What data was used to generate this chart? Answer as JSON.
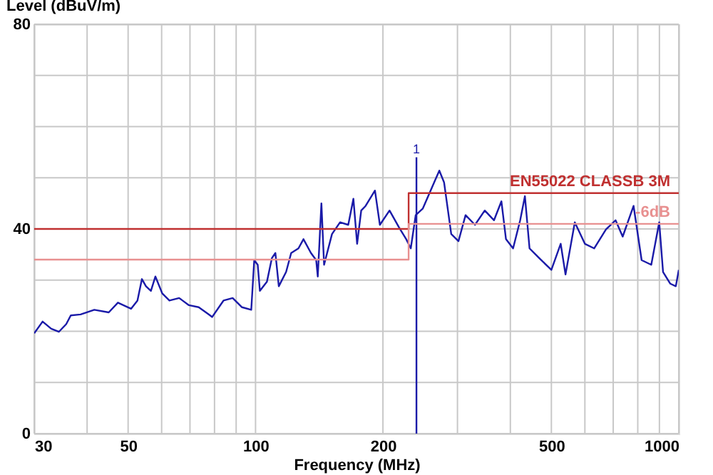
{
  "chart_data": {
    "type": "line",
    "xlabel": "Frequency (MHz)",
    "ylabel": "Level (dBuV/m)",
    "log": "x",
    "xlim": [
      30,
      1000
    ],
    "ylim": [
      0,
      80
    ],
    "xticks": [
      30,
      {
        "value": 40,
        "label": null
      },
      50,
      {
        "value": 60,
        "label": null
      },
      {
        "value": 70,
        "label": null
      },
      {
        "value": 80,
        "label": null
      },
      {
        "value": 90,
        "label": null
      },
      100,
      200,
      {
        "value": 300,
        "label": null
      },
      {
        "value": 400,
        "label": null
      },
      500,
      {
        "value": 600,
        "label": null
      },
      {
        "value": 700,
        "label": null
      },
      {
        "value": 800,
        "label": null
      },
      {
        "value": 900,
        "label": null
      },
      1000
    ],
    "yticks": [
      0,
      {
        "value": 10,
        "label": null
      },
      {
        "value": 20,
        "label": null
      },
      {
        "value": 30,
        "label": null
      },
      40,
      {
        "value": 50,
        "label": null
      },
      {
        "value": 60,
        "label": null
      },
      {
        "value": 70,
        "label": null
      },
      80
    ],
    "grid": true,
    "annotations": [
      {
        "text": "1",
        "x": 240,
        "y": 54
      }
    ],
    "series": [
      {
        "color": "#1a1aa8",
        "x": [
          30,
          31.4,
          32.9,
          34.3,
          35.7,
          36.6,
          38.6,
          41.6,
          45,
          47.3,
          50.8,
          52.6,
          53.9,
          55.1,
          56.6,
          58,
          60.2,
          62.6,
          66,
          69.6,
          73.4,
          77.5,
          79,
          84,
          88.3,
          92.9,
          97.7,
          99.3,
          101.2,
          102.4,
          106.4,
          109.3,
          111.4,
          113.5,
          118.1,
          121.4,
          126.3,
          129.8,
          135.2,
          139.1,
          140.3,
          143.1,
          145.2,
          151.6,
          158.4,
          165.6,
          170.3,
          173.8,
          177.7,
          182,
          191.5,
          196.7,
          207.3,
          218.3,
          227,
          232.7,
          239,
          248.5,
          261.4,
          271.8,
          278.9,
          290,
          301.6,
          313.5,
          330,
          348,
          366,
          381,
          390.6,
          406,
          422,
          433,
          444,
          468,
          500,
          526,
          540,
          568,
          600,
          631,
          673,
          709,
          737,
          782,
          817,
          861,
          899,
          918,
          955,
          984,
          1000
        ],
        "values": [
          19.6,
          21.9,
          20.5,
          19.9,
          21.4,
          23.1,
          23.3,
          24.2,
          23.7,
          25.6,
          24.4,
          26.0,
          30.2,
          28.8,
          27.9,
          30.7,
          27.4,
          26.0,
          26.5,
          25.1,
          24.7,
          23.3,
          22.8,
          26.0,
          26.5,
          24.7,
          24.2,
          33.9,
          33.0,
          27.9,
          29.7,
          34.3,
          35.3,
          28.8,
          31.6,
          35.3,
          36.2,
          38.0,
          35.3,
          33.9,
          30.7,
          45.0,
          33.0,
          39.0,
          41.3,
          40.8,
          45.9,
          37.1,
          43.6,
          44.5,
          47.5,
          40.8,
          43.6,
          40.3,
          38.0,
          36.2,
          42.7,
          44.0,
          48.2,
          51.4,
          49.1,
          39.0,
          37.6,
          42.7,
          40.8,
          43.6,
          41.7,
          45.4,
          38.0,
          36.2,
          41.7,
          46.4,
          36.2,
          34.3,
          32.0,
          37.1,
          31.1,
          41.3,
          37.1,
          36.2,
          39.9,
          41.7,
          38.5,
          44.5,
          33.9,
          33.0,
          41.3,
          31.6,
          29.3,
          28.8,
          32.0
        ]
      },
      {
        "type": "line",
        "color": "#1a1aa8",
        "x": [
          240,
          240
        ],
        "values": [
          0,
          54
        ]
      },
      {
        "type": "step",
        "name": "EN55022 CLASSB 3M",
        "color": "#c03030",
        "x": [
          30,
          230,
          1000
        ],
        "values": [
          40,
          47,
          47
        ]
      },
      {
        "type": "step",
        "name": "-6dB",
        "color": "#e89090",
        "x": [
          30,
          230,
          1000
        ],
        "values": [
          34,
          41,
          41
        ]
      }
    ]
  }
}
